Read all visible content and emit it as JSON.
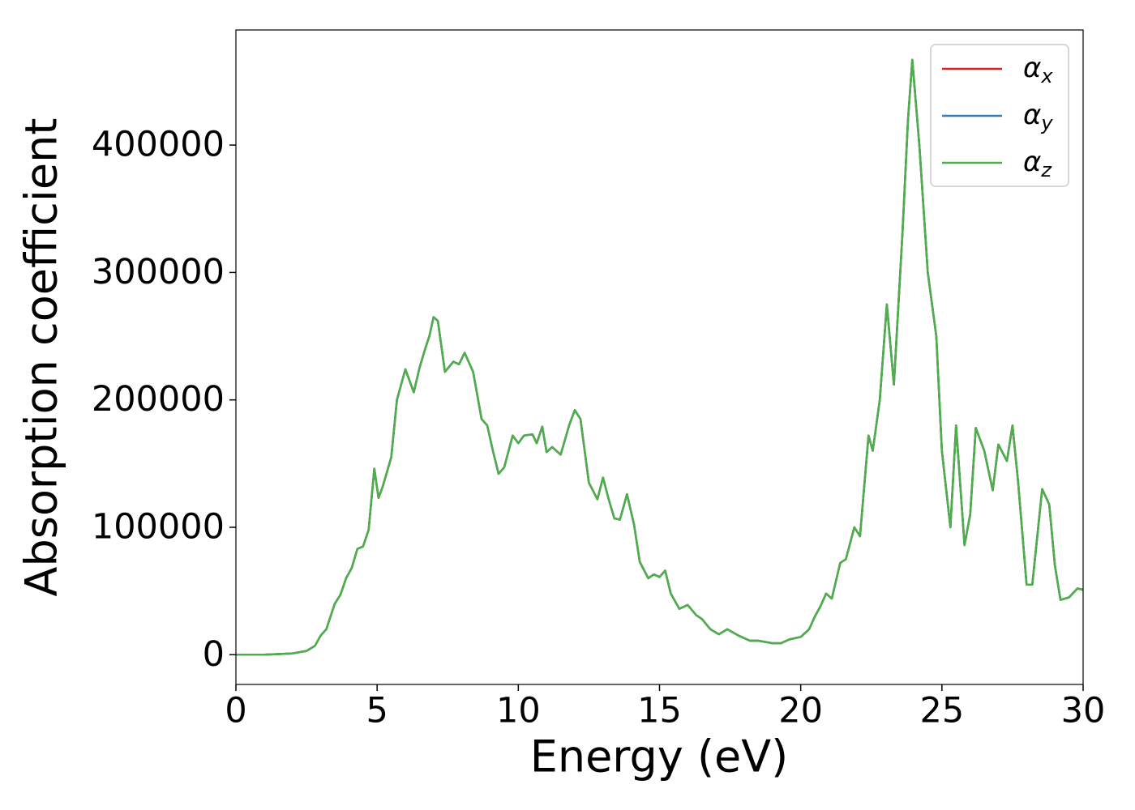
{
  "chart_data": {
    "type": "line",
    "xlabel": "Energy (eV)",
    "ylabel": "Absorption coefficient",
    "x": [
      0,
      1,
      2,
      2.5,
      2.8,
      3.0,
      3.2,
      3.5,
      3.7,
      3.9,
      4.1,
      4.3,
      4.5,
      4.7,
      4.9,
      5.05,
      5.2,
      5.5,
      5.7,
      6.0,
      6.3,
      6.5,
      6.7,
      6.85,
      7.0,
      7.15,
      7.4,
      7.7,
      7.9,
      8.1,
      8.4,
      8.7,
      8.9,
      9.1,
      9.3,
      9.5,
      9.8,
      10.0,
      10.2,
      10.5,
      10.65,
      10.85,
      11.0,
      11.2,
      11.5,
      11.8,
      12.0,
      12.2,
      12.5,
      12.8,
      13.0,
      13.2,
      13.4,
      13.6,
      13.85,
      14.1,
      14.3,
      14.6,
      14.8,
      15.0,
      15.2,
      15.4,
      15.7,
      16.0,
      16.3,
      16.5,
      16.8,
      17.1,
      17.4,
      17.8,
      18.2,
      18.5,
      19.0,
      19.3,
      19.6,
      20.0,
      20.3,
      20.5,
      20.7,
      20.9,
      21.1,
      21.4,
      21.6,
      21.9,
      22.1,
      22.4,
      22.55,
      22.8,
      23.05,
      23.3,
      23.6,
      23.8,
      23.95,
      24.2,
      24.5,
      24.8,
      25.0,
      25.3,
      25.5,
      25.8,
      26.0,
      26.2,
      26.5,
      26.8,
      27.0,
      27.3,
      27.5,
      27.7,
      28.0,
      28.2,
      28.55,
      28.8,
      29.0,
      29.2,
      29.5,
      29.8,
      30.0
    ],
    "series": [
      {
        "name": "αx",
        "color": "#e41a1c",
        "values": [
          0,
          0,
          1000,
          3000,
          7000,
          15000,
          20000,
          40000,
          47000,
          60000,
          68000,
          83000,
          85000,
          98000,
          146000,
          123000,
          132000,
          155000,
          200000,
          224000,
          206000,
          225000,
          240000,
          250000,
          265000,
          262000,
          222000,
          230000,
          228000,
          237000,
          222000,
          185000,
          180000,
          160000,
          142000,
          147000,
          172000,
          166000,
          172000,
          173000,
          166000,
          179000,
          159000,
          163000,
          157000,
          180000,
          192000,
          185000,
          135000,
          122000,
          139000,
          122000,
          107000,
          106000,
          126000,
          102000,
          73000,
          60000,
          63000,
          61000,
          66000,
          48000,
          36000,
          39000,
          31000,
          28000,
          20000,
          16000,
          20000,
          15000,
          11000,
          11000,
          9000,
          9000,
          12000,
          14000,
          20000,
          30000,
          38000,
          48000,
          44000,
          72000,
          75000,
          100000,
          93000,
          172000,
          160000,
          200000,
          275000,
          212000,
          330000,
          420000,
          467000,
          400000,
          300000,
          250000,
          160000,
          100000,
          180000,
          86000,
          110000,
          178000,
          160000,
          129000,
          165000,
          152000,
          180000,
          135000,
          55000,
          55000,
          130000,
          118000,
          70000,
          43000,
          45000,
          52000,
          51000
        ]
      },
      {
        "name": "αy",
        "color": "#377eb8",
        "values": [
          0,
          0,
          1000,
          3000,
          7000,
          15000,
          20000,
          40000,
          47000,
          60000,
          68000,
          83000,
          85000,
          98000,
          146000,
          123000,
          132000,
          155000,
          200000,
          224000,
          206000,
          225000,
          240000,
          250000,
          265000,
          262000,
          222000,
          230000,
          228000,
          237000,
          222000,
          185000,
          180000,
          160000,
          142000,
          147000,
          172000,
          166000,
          172000,
          173000,
          166000,
          179000,
          159000,
          163000,
          157000,
          180000,
          192000,
          185000,
          135000,
          122000,
          139000,
          122000,
          107000,
          106000,
          126000,
          102000,
          73000,
          60000,
          63000,
          61000,
          66000,
          48000,
          36000,
          39000,
          31000,
          28000,
          20000,
          16000,
          20000,
          15000,
          11000,
          11000,
          9000,
          9000,
          12000,
          14000,
          20000,
          30000,
          38000,
          48000,
          44000,
          72000,
          75000,
          100000,
          93000,
          172000,
          160000,
          200000,
          275000,
          212000,
          330000,
          420000,
          467000,
          400000,
          300000,
          250000,
          160000,
          100000,
          180000,
          86000,
          110000,
          178000,
          160000,
          129000,
          165000,
          152000,
          180000,
          135000,
          55000,
          55000,
          130000,
          118000,
          70000,
          43000,
          45000,
          52000,
          51000
        ]
      },
      {
        "name": "αz",
        "color": "#4daf4a",
        "values": [
          0,
          0,
          1000,
          3000,
          7000,
          15000,
          20000,
          40000,
          47000,
          60000,
          68000,
          83000,
          85000,
          98000,
          146000,
          123000,
          132000,
          155000,
          200000,
          224000,
          206000,
          225000,
          240000,
          250000,
          265000,
          262000,
          222000,
          230000,
          228000,
          237000,
          222000,
          185000,
          180000,
          160000,
          142000,
          147000,
          172000,
          166000,
          172000,
          173000,
          166000,
          179000,
          159000,
          163000,
          157000,
          180000,
          192000,
          185000,
          135000,
          122000,
          139000,
          122000,
          107000,
          106000,
          126000,
          102000,
          73000,
          60000,
          63000,
          61000,
          66000,
          48000,
          36000,
          39000,
          31000,
          28000,
          20000,
          16000,
          20000,
          15000,
          11000,
          11000,
          9000,
          9000,
          12000,
          14000,
          20000,
          30000,
          38000,
          48000,
          44000,
          72000,
          75000,
          100000,
          93000,
          172000,
          160000,
          200000,
          275000,
          212000,
          330000,
          420000,
          467000,
          400000,
          300000,
          250000,
          160000,
          100000,
          180000,
          86000,
          110000,
          178000,
          160000,
          129000,
          165000,
          152000,
          180000,
          135000,
          55000,
          55000,
          130000,
          118000,
          70000,
          43000,
          45000,
          52000,
          51000
        ]
      }
    ],
    "xlim": [
      0,
      30
    ],
    "xticks": [
      0,
      5,
      10,
      15,
      20,
      25,
      30
    ],
    "ylim": [
      -23350,
      490350
    ],
    "yticks": [
      0,
      100000,
      200000,
      300000,
      400000
    ],
    "grid": false,
    "legend": "upper right"
  }
}
